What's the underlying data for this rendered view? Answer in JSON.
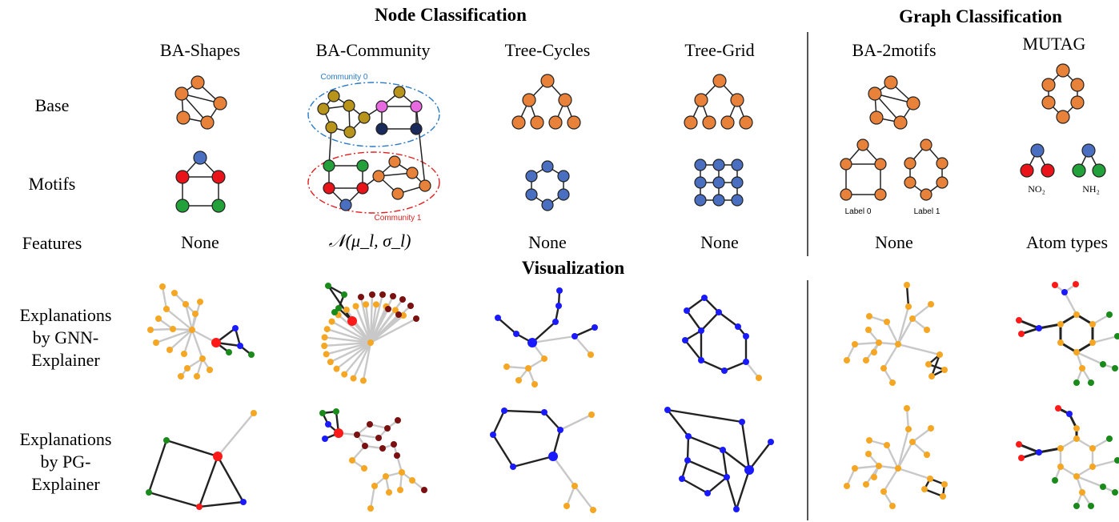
{
  "headers": {
    "node_classification": "Node Classification",
    "graph_classification": "Graph Classification",
    "visualization": "Visualization"
  },
  "columns": {
    "ba_shapes": "BA-Shapes",
    "ba_community": "BA-Community",
    "tree_cycles": "Tree-Cycles",
    "tree_grid": "Tree-Grid",
    "ba_2motifs": "BA-2motifs",
    "mutag": "MUTAG"
  },
  "rows": {
    "base": "Base",
    "motifs": "Motifs",
    "features": "Features",
    "gnn": [
      "Explanations",
      "by GNN-",
      "Explainer"
    ],
    "pg": [
      "Explanations",
      "by PG-",
      "Explainer"
    ]
  },
  "features": {
    "ba_shapes": "None",
    "ba_community": "𝒩(μ_l, σ_l)",
    "tree_cycles": "None",
    "tree_grid": "None",
    "ba_2motifs": "None",
    "mutag": "Atom types"
  },
  "annotations": {
    "community0": "Community 0",
    "community1": "Community 1",
    "label0": "Label 0",
    "label1": "Label 1",
    "no2": "NO₂",
    "nh2": "NH₂"
  },
  "colors": {
    "orange": "#e8823a",
    "blue": "#4a6fc0",
    "red": "#e8141a",
    "green": "#22a03a",
    "gold": "#b8941a",
    "pink": "#e86ae0",
    "navy": "#1a2a5a",
    "viz_orange": "#f5a623",
    "viz_blue": "#1a1aff",
    "viz_red": "#ff1a1a",
    "viz_green": "#1a8a1a",
    "viz_maroon": "#7a1010",
    "edge_light": "#c8c8c8",
    "edge_dark": "#222222"
  }
}
